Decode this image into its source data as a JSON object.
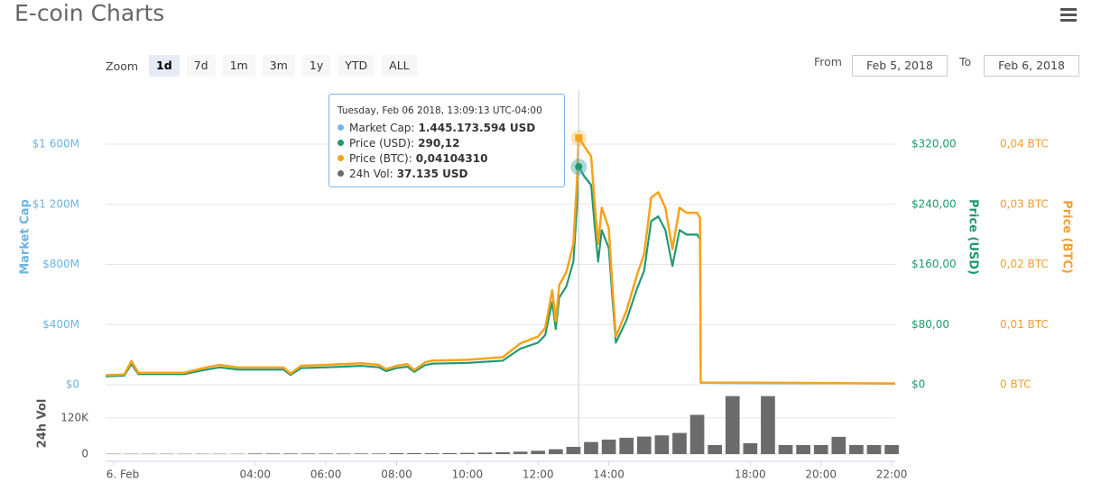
{
  "header": {
    "title": "E-coin Charts"
  },
  "zoom": {
    "label": "Zoom",
    "buttons": [
      "1d",
      "7d",
      "1m",
      "3m",
      "1y",
      "YTD",
      "ALL"
    ],
    "selected": 0
  },
  "range": {
    "from_label": "From",
    "from": "Feb 5, 2018",
    "to_label": "To",
    "to": "Feb 6, 2018"
  },
  "tooltip": {
    "title": "Tuesday, Feb 06 2018, 13:09:13 UTC-04:00",
    "rows": [
      {
        "label": "Market Cap:",
        "value": "1.445.173.594 USD"
      },
      {
        "label": "Price (USD):",
        "value": "290,12"
      },
      {
        "label": "Price (BTC):",
        "value": "0,04104310"
      },
      {
        "label": "24h Vol:",
        "value": "37.135 USD"
      }
    ]
  },
  "chart_data": [
    {
      "type": "line",
      "grid": true,
      "xlim": [
        -0.23,
        22.1
      ],
      "x": [
        -0.23,
        0.3,
        0.5,
        0.7,
        1,
        2,
        2.5,
        3,
        3.5,
        4,
        4.8,
        5,
        5.3,
        6,
        7,
        7.5,
        7.7,
        8,
        8.3,
        8.5,
        8.8,
        9,
        10,
        11,
        11.5,
        12,
        12.2,
        12.4,
        12.5,
        12.6,
        12.8,
        13,
        13.1,
        13.15,
        13.3,
        13.5,
        13.6,
        13.7,
        13.8,
        14,
        14.1,
        14.2,
        14.5,
        14.8,
        15,
        15.2,
        15.4,
        15.6,
        15.8,
        16,
        16.2,
        16.5,
        16.58,
        16.6,
        18,
        20,
        22.1
      ],
      "ylim": [
        0,
        1960
      ],
      "yticks": [
        {
          "value": 0,
          "label": "$0"
        },
        {
          "value": 400,
          "label": "$400M"
        },
        {
          "value": 800,
          "label": "$800M"
        },
        {
          "value": 1200,
          "label": "$1 200M"
        },
        {
          "value": 1600,
          "label": "$1 600M"
        }
      ],
      "y2lim": [
        0,
        392
      ],
      "y2ticks": [
        {
          "value": 0,
          "label": "$0"
        },
        {
          "value": 80,
          "label": "$80,00"
        },
        {
          "value": 160,
          "label": "$160,00"
        },
        {
          "value": 240,
          "label": "$240,00"
        },
        {
          "value": 320,
          "label": "$320,00"
        }
      ],
      "y3lim": [
        0,
        0.049
      ],
      "y3ticks": [
        {
          "value": 0,
          "label": "0 BTC"
        },
        {
          "value": 0.01,
          "label": "0,01 BTC"
        },
        {
          "value": 0.02,
          "label": "0,02 BTC"
        },
        {
          "value": 0.03,
          "label": "0,03 BTC"
        },
        {
          "value": 0.04,
          "label": "0,04 BTC"
        }
      ],
      "series": [
        {
          "name": "Market Cap",
          "color": "#7cb5ec",
          "values": [
            55,
            60,
            137,
            70,
            70,
            70,
            95,
            115,
            100,
            100,
            100,
            65,
            110,
            115,
            125,
            115,
            90,
            110,
            120,
            85,
            129,
            139,
            144,
            159,
            239,
            279,
            329,
            548,
            369,
            578,
            652,
            817,
            1175,
            1445,
            1384,
            1325,
            1056,
            817,
            1026,
            906,
            578,
            279,
            428,
            637,
            757,
            1086,
            1116,
            1026,
            787,
            1026,
            996,
            996,
            966,
            12,
            11,
            10,
            7.5
          ]
        },
        {
          "name": "Price (USD)",
          "color": "#1d9a6c",
          "axis": "y2",
          "values": [
            11,
            12,
            27.6,
            14,
            14,
            14,
            19,
            23,
            20,
            20,
            20,
            13,
            22,
            23,
            25,
            23,
            18,
            22,
            24,
            17,
            26,
            28,
            29,
            32,
            48,
            56,
            66,
            110,
            74,
            116,
            131,
            164,
            236,
            290.12,
            278,
            266,
            212,
            164,
            206,
            182,
            116,
            56,
            86,
            128,
            152,
            218,
            224,
            206,
            158,
            206,
            200,
            200,
            194,
            2.4,
            2.3,
            2,
            1.5
          ]
        },
        {
          "name": "Price (BTC)",
          "color": "#f7a21b",
          "axis": "y3",
          "values": [
            0.00157,
            0.00171,
            0.00394,
            0.002,
            0.002,
            0.002,
            0.00271,
            0.00329,
            0.00286,
            0.00286,
            0.00286,
            0.00186,
            0.00314,
            0.00329,
            0.00357,
            0.00329,
            0.00257,
            0.00314,
            0.00343,
            0.00243,
            0.00371,
            0.004,
            0.00414,
            0.00457,
            0.00686,
            0.008,
            0.00943,
            0.0157,
            0.01057,
            0.01657,
            0.01871,
            0.02343,
            0.03371,
            0.0410431,
            0.03971,
            0.038,
            0.03029,
            0.02343,
            0.02943,
            0.026,
            0.01657,
            0.008,
            0.01229,
            0.01829,
            0.02171,
            0.03114,
            0.032,
            0.02943,
            0.02257,
            0.02943,
            0.02857,
            0.02857,
            0.02771,
            0.00034,
            0.00033,
            0.00029,
            0.00021
          ]
        }
      ]
    },
    {
      "type": "bar",
      "grid": true,
      "xlim": [
        -0.23,
        22.1
      ],
      "xticks": [
        {
          "value": 0,
          "label": "6. Feb"
        },
        {
          "value": 4,
          "label": "04:00"
        },
        {
          "value": 6,
          "label": "06:00"
        },
        {
          "value": 8,
          "label": "08:00"
        },
        {
          "value": 10,
          "label": "10:00"
        },
        {
          "value": 12,
          "label": "12:00"
        },
        {
          "value": 14,
          "label": "14:00"
        },
        {
          "value": 18,
          "label": "18:00"
        },
        {
          "value": 20,
          "label": "20:00"
        },
        {
          "value": 22,
          "label": "22:00"
        }
      ],
      "x": [
        0,
        0.5,
        1,
        1.5,
        2,
        2.5,
        3,
        3.5,
        4,
        4.5,
        5,
        5.5,
        6,
        6.5,
        7,
        7.5,
        8,
        8.5,
        9,
        9.5,
        10,
        10.5,
        11,
        11.5,
        12,
        12.5,
        13,
        13.5,
        14,
        14.5,
        15,
        15.5,
        16,
        16.5,
        17,
        17.5,
        18,
        18.5,
        19,
        19.5,
        20,
        20.5,
        21,
        21.5,
        22
      ],
      "ylim": [
        0,
        200000
      ],
      "yticks": [
        0,
        {
          "value": 120000,
          "label": "120K"
        }
      ],
      "series": [
        {
          "name": "24h Vol",
          "color": "#6b6b6b",
          "values": [
            1000,
            1000,
            1000,
            1000,
            1000,
            1000,
            1000,
            1000,
            2000,
            2000,
            2000,
            2000,
            2000,
            2000,
            2000,
            2000,
            3000,
            3000,
            3000,
            3000,
            4000,
            5000,
            6000,
            8000,
            11000,
            16000,
            24000,
            40000,
            48000,
            54000,
            58000,
            62000,
            70000,
            130000,
            30000,
            192000,
            36000,
            192000,
            30000,
            30000,
            30000,
            57000,
            30000,
            30000,
            30000
          ]
        }
      ]
    }
  ]
}
